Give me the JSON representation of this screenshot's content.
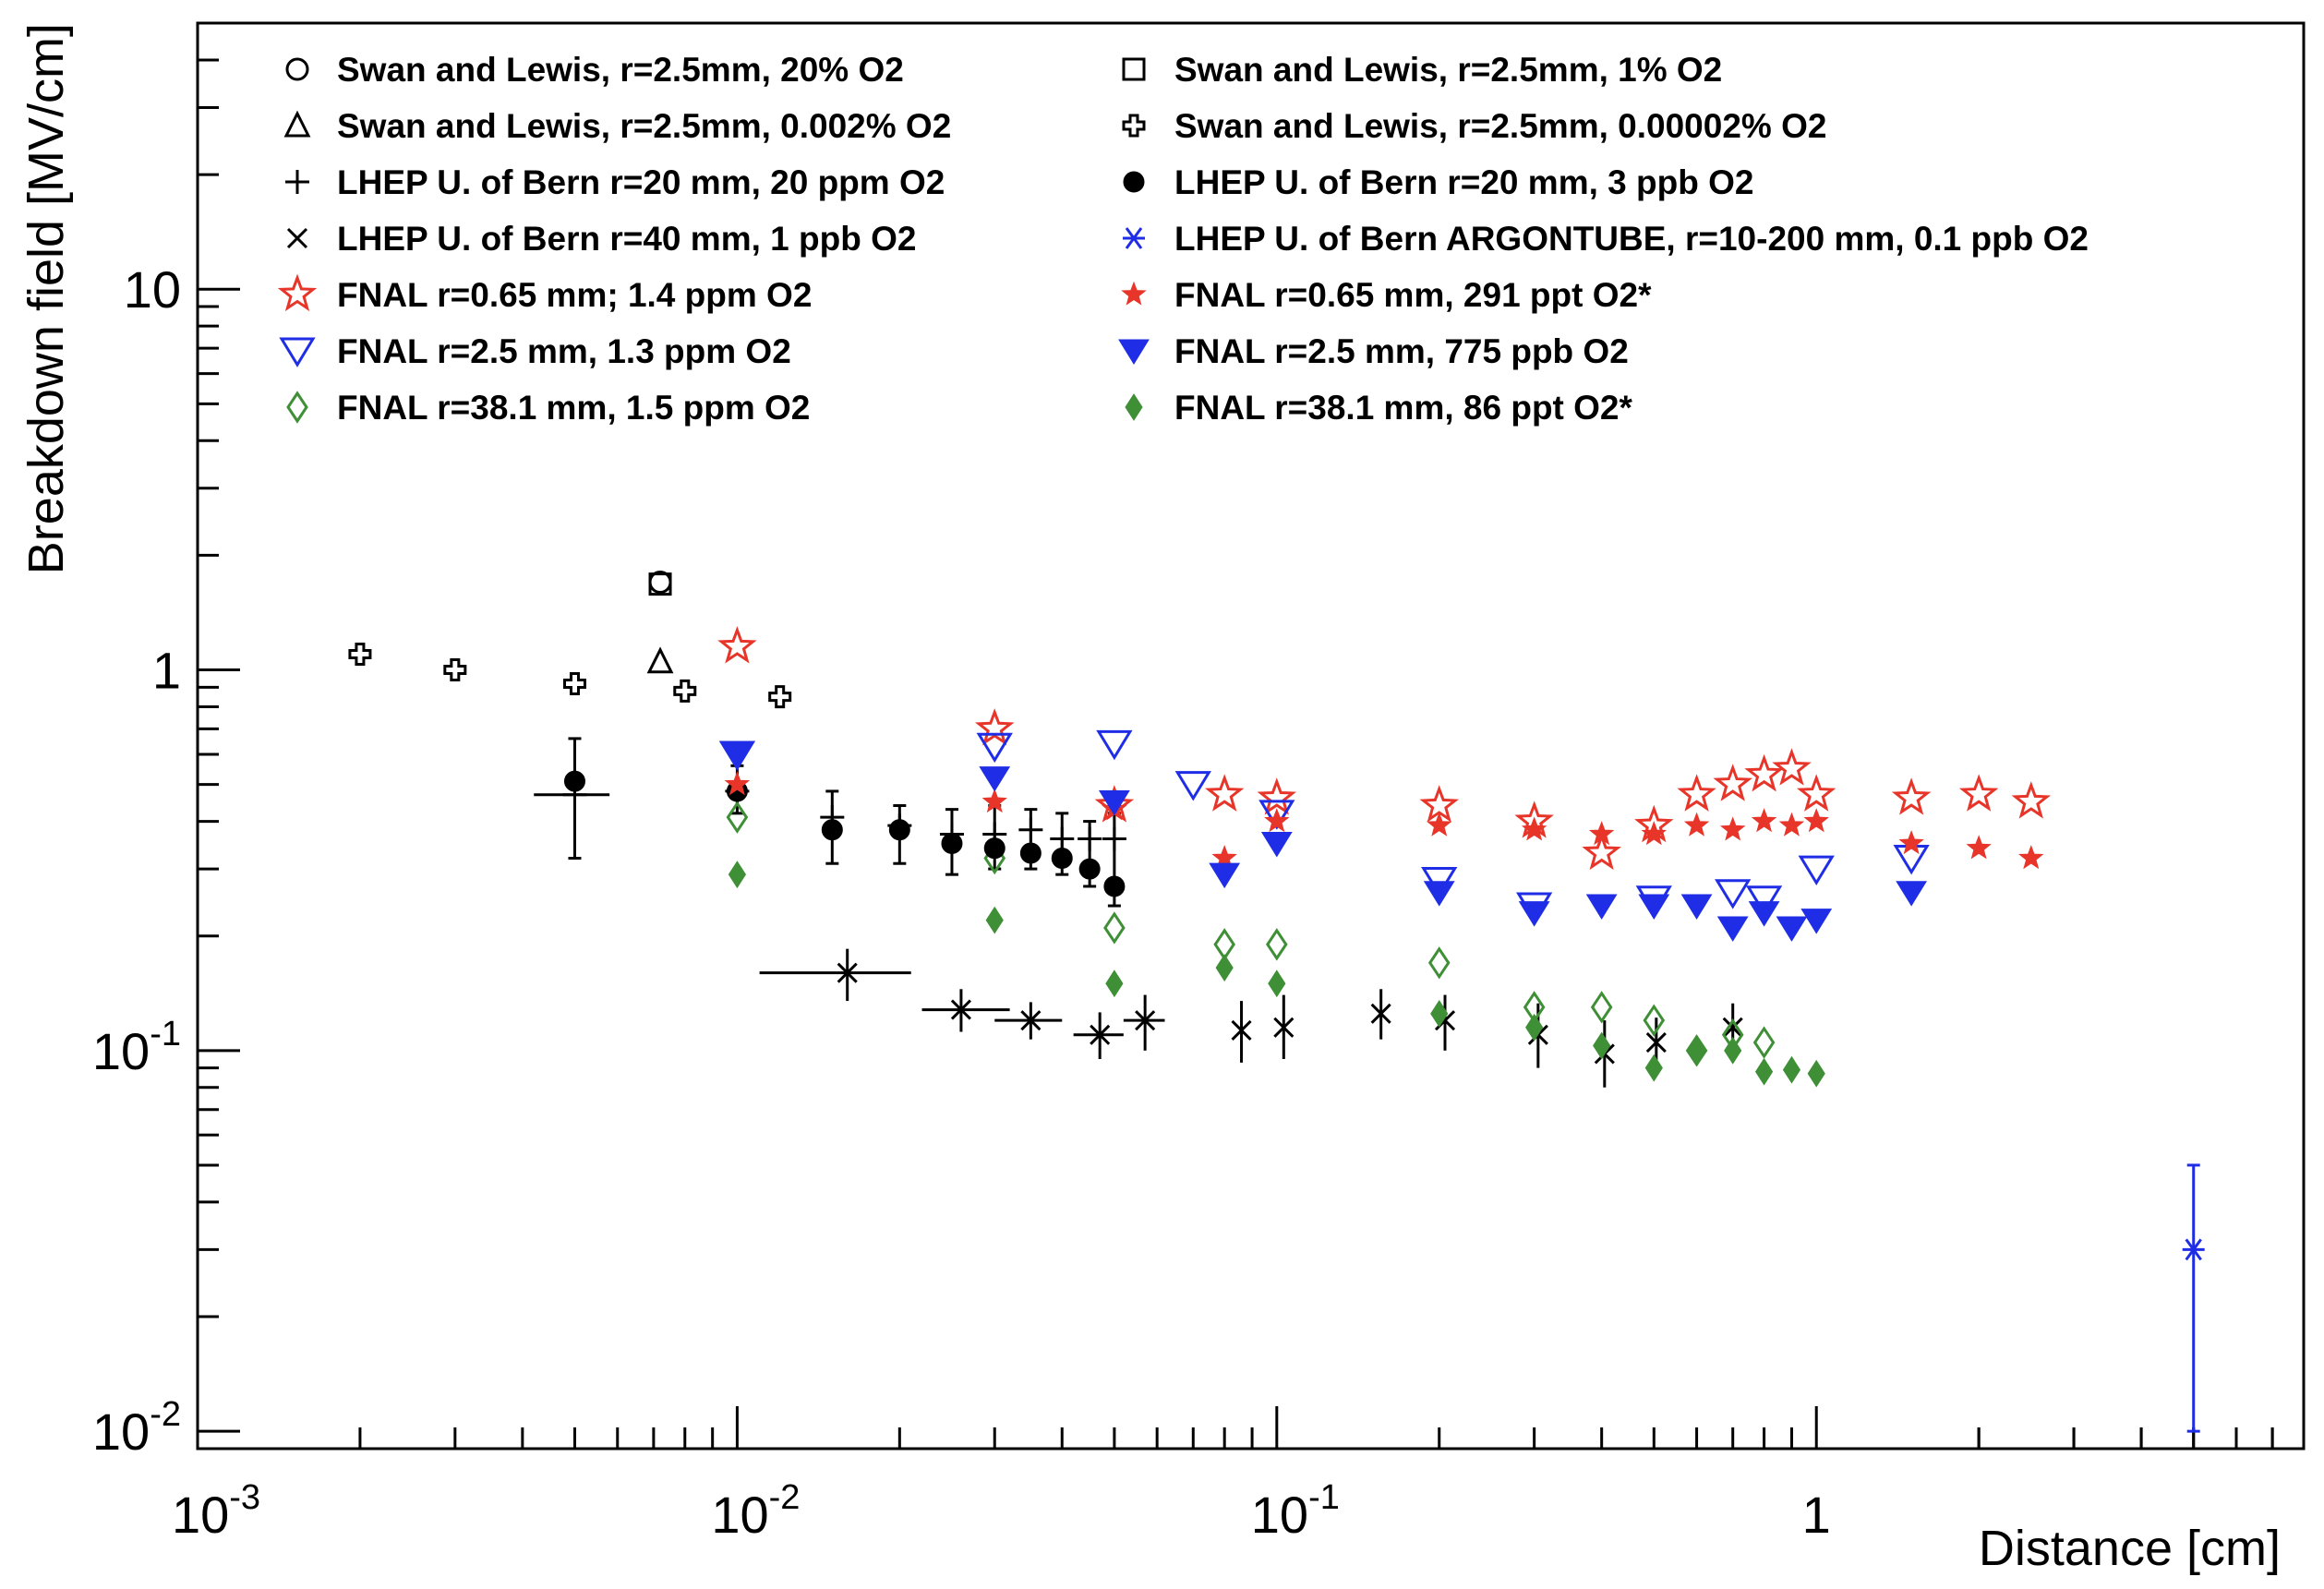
{
  "chart_data": {
    "type": "scatter",
    "title": "",
    "xlabel": "Distance [cm]",
    "ylabel": "Breakdown field [MV/cm]",
    "xscale": "log",
    "yscale": "log",
    "xlim": [
      0.001,
      8
    ],
    "ylim": [
      0.009,
      50
    ],
    "x_tick_labels": [
      {
        "value": 0.001,
        "base": "10",
        "exp": "-3"
      },
      {
        "value": 0.01,
        "base": "10",
        "exp": "-2"
      },
      {
        "value": 0.1,
        "base": "10",
        "exp": "-1"
      },
      {
        "value": 1,
        "base": "1",
        "exp": ""
      }
    ],
    "y_tick_labels": [
      {
        "value": 0.01,
        "base": "10",
        "exp": "-2"
      },
      {
        "value": 0.1,
        "base": "10",
        "exp": "-1"
      },
      {
        "value": 1,
        "base": "1",
        "exp": ""
      },
      {
        "value": 10,
        "base": "10",
        "exp": ""
      }
    ],
    "legend_position": "top",
    "series": [
      {
        "name": "Swan and Lewis, r=2.5mm, 20% O2",
        "marker": "circle-open",
        "color": "#000000",
        "points": [
          {
            "x": 0.0072,
            "y": 1.7
          }
        ]
      },
      {
        "name": "Swan and Lewis, r=2.5mm, 0.002% O2",
        "marker": "triangle-up-open",
        "color": "#000000",
        "points": [
          {
            "x": 0.0072,
            "y": 1.05
          }
        ]
      },
      {
        "name": "LHEP U. of Bern r=20 mm, 20 ppm O2",
        "marker": "plus",
        "color": "#000000",
        "points": [
          {
            "x": 0.005,
            "y": 0.47,
            "xerr": [
              0.0042,
              0.0058
            ],
            "yerr": [
              0.32,
              0.66
            ]
          },
          {
            "x": 0.01,
            "y": 0.48,
            "yerr": [
              0.42,
              0.56
            ]
          },
          {
            "x": 0.015,
            "y": 0.41,
            "yerr": [
              0.31,
              0.48
            ]
          },
          {
            "x": 0.02,
            "y": 0.39,
            "yerr": [
              0.31,
              0.44
            ]
          },
          {
            "x": 0.025,
            "y": 0.37,
            "yerr": [
              0.29,
              0.43
            ]
          },
          {
            "x": 0.03,
            "y": 0.37,
            "yerr": [
              0.3,
              0.44
            ]
          },
          {
            "x": 0.035,
            "y": 0.38,
            "yerr": [
              0.3,
              0.43
            ]
          },
          {
            "x": 0.04,
            "y": 0.36,
            "yerr": [
              0.29,
              0.42
            ]
          },
          {
            "x": 0.045,
            "y": 0.36,
            "yerr": [
              0.27,
              0.4
            ]
          },
          {
            "x": 0.05,
            "y": 0.36,
            "yerr": [
              0.24,
              0.42
            ]
          }
        ]
      },
      {
        "name": "LHEP U. of Bern r=40 mm, 1 ppb O2",
        "marker": "cross",
        "color": "#000000",
        "points": [
          {
            "x": 0.016,
            "y": 0.16,
            "xerr": [
              0.011,
              0.021
            ],
            "yerr": [
              0.135,
              0.185
            ]
          },
          {
            "x": 0.026,
            "y": 0.128,
            "xerr": [
              0.022,
              0.032
            ],
            "yerr": [
              0.112,
              0.145
            ]
          },
          {
            "x": 0.035,
            "y": 0.12,
            "xerr": [
              0.03,
              0.04
            ],
            "yerr": [
              0.107,
              0.134
            ]
          },
          {
            "x": 0.047,
            "y": 0.11,
            "xerr": [
              0.042,
              0.052
            ],
            "yerr": [
              0.095,
              0.126
            ]
          },
          {
            "x": 0.057,
            "y": 0.12,
            "xerr": [
              0.052,
              0.062
            ],
            "yerr": [
              0.1,
              0.14
            ]
          },
          {
            "x": 0.086,
            "y": 0.113,
            "yerr": [
              0.093,
              0.135
            ]
          },
          {
            "x": 0.103,
            "y": 0.115,
            "yerr": [
              0.095,
              0.14
            ]
          },
          {
            "x": 0.156,
            "y": 0.125,
            "yerr": [
              0.107,
              0.145
            ]
          },
          {
            "x": 0.205,
            "y": 0.12,
            "yerr": [
              0.1,
              0.14
            ]
          },
          {
            "x": 0.305,
            "y": 0.11,
            "yerr": [
              0.09,
              0.133
            ]
          },
          {
            "x": 0.405,
            "y": 0.098,
            "yerr": [
              0.08,
              0.12
            ]
          },
          {
            "x": 0.505,
            "y": 0.105,
            "yerr": [
              0.09,
              0.122
            ]
          },
          {
            "x": 0.7,
            "y": 0.115,
            "yerr": [
              0.1,
              0.133
            ]
          }
        ]
      },
      {
        "name": "FNAL r=0.65 mm; 1.4 ppm O2",
        "marker": "star-open",
        "color": "#e8352a",
        "points": [
          {
            "x": 0.01,
            "y": 1.15
          },
          {
            "x": 0.03,
            "y": 0.7
          },
          {
            "x": 0.05,
            "y": 0.44
          },
          {
            "x": 0.08,
            "y": 0.47
          },
          {
            "x": 0.1,
            "y": 0.46
          },
          {
            "x": 0.2,
            "y": 0.44
          },
          {
            "x": 0.3,
            "y": 0.4
          },
          {
            "x": 0.4,
            "y": 0.33
          },
          {
            "x": 0.5,
            "y": 0.39
          },
          {
            "x": 0.6,
            "y": 0.47
          },
          {
            "x": 0.7,
            "y": 0.5
          },
          {
            "x": 0.8,
            "y": 0.53
          },
          {
            "x": 0.9,
            "y": 0.55
          },
          {
            "x": 1.0,
            "y": 0.47
          },
          {
            "x": 1.5,
            "y": 0.46
          },
          {
            "x": 2.0,
            "y": 0.47
          },
          {
            "x": 2.5,
            "y": 0.45
          }
        ]
      },
      {
        "name": "FNAL r=2.5 mm, 1.3 ppm O2",
        "marker": "triangle-down-open",
        "color": "#1f2ee6",
        "points": [
          {
            "x": 0.01,
            "y": 0.6
          },
          {
            "x": 0.03,
            "y": 0.63
          },
          {
            "x": 0.05,
            "y": 0.64
          },
          {
            "x": 0.07,
            "y": 0.5
          },
          {
            "x": 0.1,
            "y": 0.42
          },
          {
            "x": 0.2,
            "y": 0.28
          },
          {
            "x": 0.3,
            "y": 0.24
          },
          {
            "x": 0.5,
            "y": 0.25
          },
          {
            "x": 0.7,
            "y": 0.26
          },
          {
            "x": 0.8,
            "y": 0.25
          },
          {
            "x": 1.0,
            "y": 0.3
          },
          {
            "x": 1.5,
            "y": 0.32
          }
        ]
      },
      {
        "name": "FNAL r=38.1 mm, 1.5 ppm O2",
        "marker": "diamond-open",
        "color": "#3e8f36",
        "points": [
          {
            "x": 0.01,
            "y": 0.41
          },
          {
            "x": 0.03,
            "y": 0.32
          },
          {
            "x": 0.05,
            "y": 0.21
          },
          {
            "x": 0.08,
            "y": 0.19
          },
          {
            "x": 0.1,
            "y": 0.19
          },
          {
            "x": 0.2,
            "y": 0.17
          },
          {
            "x": 0.3,
            "y": 0.13
          },
          {
            "x": 0.4,
            "y": 0.13
          },
          {
            "x": 0.5,
            "y": 0.12
          },
          {
            "x": 0.6,
            "y": 0.1
          },
          {
            "x": 0.7,
            "y": 0.11
          },
          {
            "x": 0.8,
            "y": 0.105
          }
        ]
      },
      {
        "name": "Swan and Lewis, r=2.5mm, 1% O2",
        "marker": "square-open",
        "color": "#000000",
        "points": [
          {
            "x": 0.0072,
            "y": 1.68
          }
        ]
      },
      {
        "name": "Swan and Lewis, r=2.5mm,  0.00002% O2",
        "marker": "cross-open",
        "color": "#000000",
        "points": [
          {
            "x": 0.002,
            "y": 1.1
          },
          {
            "x": 0.003,
            "y": 1.0
          },
          {
            "x": 0.005,
            "y": 0.92
          },
          {
            "x": 0.008,
            "y": 0.88
          },
          {
            "x": 0.012,
            "y": 0.85
          }
        ]
      },
      {
        "name": "LHEP U. of Bern r=20 mm, 3 ppb O2",
        "marker": "circle-filled",
        "color": "#000000",
        "points": [
          {
            "x": 0.005,
            "y": 0.51
          },
          {
            "x": 0.01,
            "y": 0.48
          },
          {
            "x": 0.015,
            "y": 0.38
          },
          {
            "x": 0.02,
            "y": 0.38
          },
          {
            "x": 0.025,
            "y": 0.35
          },
          {
            "x": 0.03,
            "y": 0.34
          },
          {
            "x": 0.035,
            "y": 0.33
          },
          {
            "x": 0.04,
            "y": 0.32
          },
          {
            "x": 0.045,
            "y": 0.3
          },
          {
            "x": 0.05,
            "y": 0.27
          }
        ]
      },
      {
        "name": "LHEP U. of Bern ARGONTUBE, r=10-200 mm, 0.1 ppb O2",
        "marker": "asterisk",
        "color": "#1f2ee6",
        "points": [
          {
            "x": 5.0,
            "y": 0.03,
            "yerr": [
              0.01,
              0.05
            ]
          }
        ]
      },
      {
        "name": "FNAL r=0.65 mm, 291 ppt O2*",
        "marker": "star-filled",
        "color": "#e8352a",
        "points": [
          {
            "x": 0.01,
            "y": 0.5
          },
          {
            "x": 0.03,
            "y": 0.45
          },
          {
            "x": 0.05,
            "y": 0.43
          },
          {
            "x": 0.08,
            "y": 0.32
          },
          {
            "x": 0.1,
            "y": 0.4
          },
          {
            "x": 0.2,
            "y": 0.39
          },
          {
            "x": 0.3,
            "y": 0.38
          },
          {
            "x": 0.4,
            "y": 0.37
          },
          {
            "x": 0.5,
            "y": 0.37
          },
          {
            "x": 0.6,
            "y": 0.39
          },
          {
            "x": 0.7,
            "y": 0.38
          },
          {
            "x": 0.8,
            "y": 0.4
          },
          {
            "x": 0.9,
            "y": 0.39
          },
          {
            "x": 1.0,
            "y": 0.4
          },
          {
            "x": 1.5,
            "y": 0.35
          },
          {
            "x": 2.0,
            "y": 0.34
          },
          {
            "x": 2.5,
            "y": 0.32
          }
        ]
      },
      {
        "name": "FNAL r=2.5 mm, 775 ppb O2",
        "marker": "triangle-down-filled",
        "color": "#1f2ee6",
        "points": [
          {
            "x": 0.01,
            "y": 0.6
          },
          {
            "x": 0.03,
            "y": 0.52
          },
          {
            "x": 0.05,
            "y": 0.45
          },
          {
            "x": 0.08,
            "y": 0.29
          },
          {
            "x": 0.1,
            "y": 0.35
          },
          {
            "x": 0.2,
            "y": 0.26
          },
          {
            "x": 0.3,
            "y": 0.23
          },
          {
            "x": 0.4,
            "y": 0.24
          },
          {
            "x": 0.5,
            "y": 0.24
          },
          {
            "x": 0.6,
            "y": 0.24
          },
          {
            "x": 0.7,
            "y": 0.21
          },
          {
            "x": 0.8,
            "y": 0.23
          },
          {
            "x": 0.9,
            "y": 0.21
          },
          {
            "x": 1.0,
            "y": 0.22
          },
          {
            "x": 1.5,
            "y": 0.26
          }
        ]
      },
      {
        "name": "FNAL r=38.1 mm, 86 ppt O2*",
        "marker": "diamond-filled",
        "color": "#3e8f36",
        "points": [
          {
            "x": 0.01,
            "y": 0.29
          },
          {
            "x": 0.03,
            "y": 0.22
          },
          {
            "x": 0.05,
            "y": 0.15
          },
          {
            "x": 0.08,
            "y": 0.165
          },
          {
            "x": 0.1,
            "y": 0.15
          },
          {
            "x": 0.2,
            "y": 0.125
          },
          {
            "x": 0.3,
            "y": 0.115
          },
          {
            "x": 0.4,
            "y": 0.103
          },
          {
            "x": 0.5,
            "y": 0.09
          },
          {
            "x": 0.6,
            "y": 0.1
          },
          {
            "x": 0.7,
            "y": 0.1
          },
          {
            "x": 0.8,
            "y": 0.088
          },
          {
            "x": 0.9,
            "y": 0.089
          },
          {
            "x": 1.0,
            "y": 0.087
          }
        ]
      }
    ]
  }
}
